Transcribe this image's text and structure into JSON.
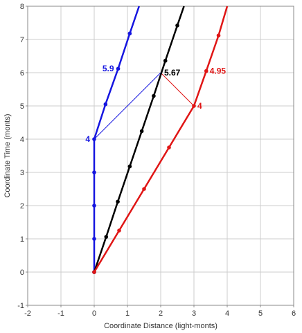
{
  "chart_data": {
    "type": "line",
    "xlabel": "Coordinate Distance (light-monts)",
    "ylabel": "Coordinate Time (monts)",
    "xlim": [
      -2,
      6
    ],
    "ylim": [
      -1,
      8
    ],
    "xticks": [
      "-2",
      "-1",
      "0",
      "1",
      "2",
      "3",
      "4",
      "5",
      "6"
    ],
    "yticks": [
      "-1",
      "0",
      "1",
      "2",
      "3",
      "4",
      "5",
      "6",
      "7",
      "8"
    ],
    "grid": true,
    "legend": "none",
    "colors": {
      "blue": "#1515e0",
      "black": "#000000",
      "red": "#e01515",
      "grid": "#cccccc",
      "frame": "#888888"
    },
    "series": [
      {
        "color": "blue",
        "x": [
          0,
          0,
          0,
          0,
          0,
          0.34,
          0.72,
          1.07,
          1.35
        ],
        "y": [
          0,
          1,
          2,
          3,
          4,
          5.05,
          6.12,
          7.18,
          8.0
        ],
        "markers": [
          true,
          true,
          true,
          true,
          true,
          true,
          true,
          true,
          false
        ]
      },
      {
        "color": "black",
        "x": [
          0,
          0.36,
          0.71,
          1.07,
          1.43,
          1.79,
          2.14,
          2.5,
          2.7
        ],
        "y": [
          0,
          1.06,
          2.12,
          3.18,
          4.24,
          5.3,
          6.36,
          7.42,
          8.0
        ],
        "markers": [
          true,
          true,
          true,
          true,
          true,
          true,
          true,
          true,
          false
        ]
      },
      {
        "color": "red",
        "x": [
          0,
          0.75,
          1.5,
          2.25,
          3,
          3.37,
          3.74,
          4.0
        ],
        "y": [
          0,
          1.25,
          2.5,
          3.75,
          5,
          6.05,
          7.12,
          8.0
        ],
        "markers": [
          true,
          true,
          true,
          true,
          true,
          true,
          true,
          false
        ]
      }
    ],
    "connectors": [
      {
        "color": "blue",
        "x": [
          0,
          2
        ],
        "y": [
          4,
          6
        ]
      },
      {
        "color": "red",
        "x": [
          2,
          3
        ],
        "y": [
          6,
          5
        ]
      }
    ],
    "annotations": [
      {
        "text": "5.9",
        "color": "blue",
        "x": 0.72,
        "y": 6.12,
        "anchor": "end"
      },
      {
        "text": "4",
        "color": "blue",
        "x": 0,
        "y": 4,
        "anchor": "end"
      },
      {
        "text": "5.67",
        "color": "black",
        "x": 2,
        "y": 6,
        "anchor": "start"
      },
      {
        "text": "4.95",
        "color": "red",
        "x": 3.37,
        "y": 6.05,
        "anchor": "start"
      },
      {
        "text": "4",
        "color": "red",
        "x": 3,
        "y": 5,
        "anchor": "start"
      }
    ]
  }
}
